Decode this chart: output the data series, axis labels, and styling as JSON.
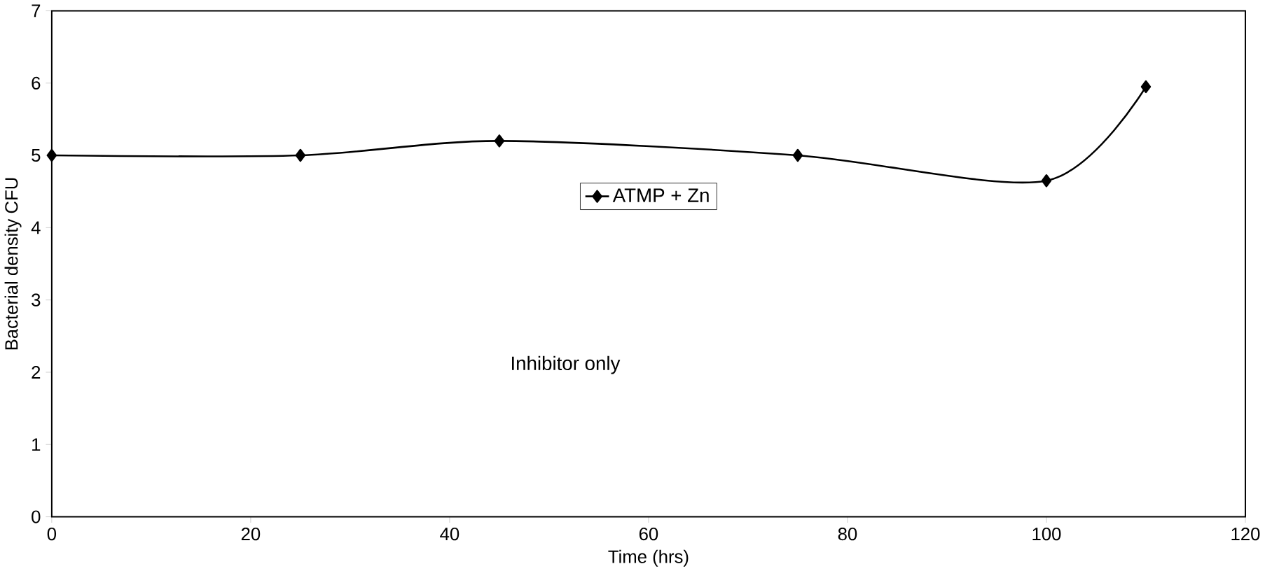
{
  "chart_data": {
    "type": "line",
    "xlabel": "Time (hrs)",
    "ylabel": "Bacterial density CFU",
    "x": [
      0,
      25,
      45,
      75,
      100,
      110
    ],
    "series": [
      {
        "name": "ATMP + Zn",
        "color": "#000000",
        "values": [
          5.0,
          5.0,
          5.2,
          5.0,
          4.65,
          5.95
        ]
      }
    ],
    "xlim": [
      0,
      120
    ],
    "xticks": [
      0,
      20,
      40,
      60,
      80,
      100,
      120
    ],
    "ylim": [
      0,
      7
    ],
    "yticks": [
      0,
      1,
      2,
      3,
      4,
      5,
      6,
      7
    ],
    "marker": "diamond",
    "line_style": "solid",
    "grid": false,
    "legend": "top",
    "annotations": [
      "Inhibitor only"
    ]
  }
}
